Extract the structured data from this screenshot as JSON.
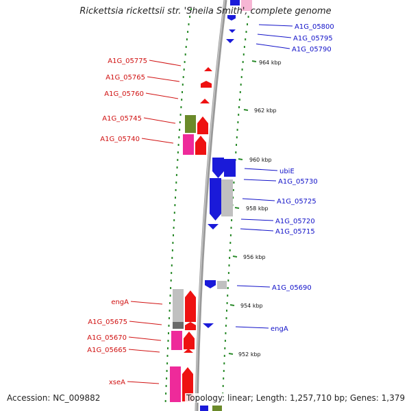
{
  "title": "Rickettsia rickettsii str. 'Sheila Smith', complete genome",
  "accession": "Accession: NC_009882",
  "summary": "Topology: linear; Length: 1,257,710 bp; Genes: 1,379",
  "colors": {
    "forward": "#ee1111",
    "reverse": "#1a1ad9",
    "pink": "#ee2a9a",
    "olive": "#6b8a2a",
    "gray": "#c0c0c0",
    "dark_gray": "#6a6a6a",
    "backbone": "#888888",
    "dots": "#2a8a2a"
  },
  "ticks": [
    {
      "label": "964 kbp"
    },
    {
      "label": "962 kbp"
    },
    {
      "label": "960 kbp"
    },
    {
      "label": "958 kbp"
    },
    {
      "label": "956 kbp"
    },
    {
      "label": "954 kbp"
    },
    {
      "label": "952 kbp"
    }
  ],
  "left_genes": [
    {
      "label": "A1G_05775"
    },
    {
      "label": "A1G_05765"
    },
    {
      "label": "A1G_05760"
    },
    {
      "label": "A1G_05745"
    },
    {
      "label": "A1G_05740"
    },
    {
      "label": "engA"
    },
    {
      "label": "A1G_05675"
    },
    {
      "label": "A1G_05670"
    },
    {
      "label": "A1G_05665"
    },
    {
      "label": "xseA"
    }
  ],
  "right_genes": [
    {
      "label": "A1G_05800"
    },
    {
      "label": "A1G_05795"
    },
    {
      "label": "A1G_05790"
    },
    {
      "label": "ubiE"
    },
    {
      "label": "A1G_05730"
    },
    {
      "label": "A1G_05725"
    },
    {
      "label": "A1G_05720"
    },
    {
      "label": "A1G_05715"
    },
    {
      "label": "A1G_05690"
    },
    {
      "label": "engA"
    }
  ]
}
